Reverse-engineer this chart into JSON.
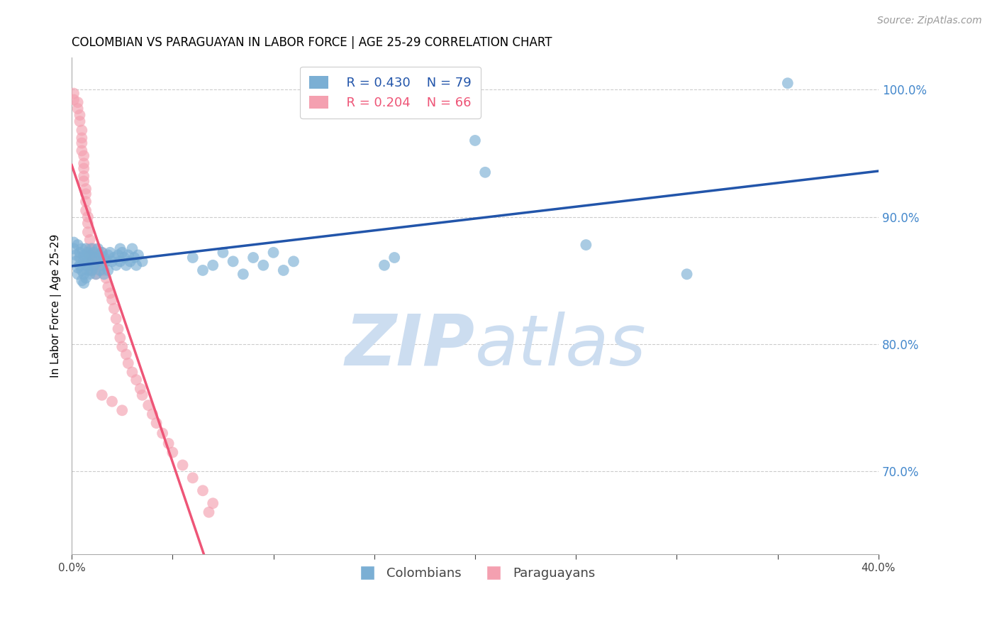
{
  "title": "COLOMBIAN VS PARAGUAYAN IN LABOR FORCE | AGE 25-29 CORRELATION CHART",
  "source": "Source: ZipAtlas.com",
  "ylabel": "In Labor Force | Age 25-29",
  "xlim": [
    0.0,
    0.4
  ],
  "ylim": [
    0.635,
    1.025
  ],
  "xticks": [
    0.0,
    0.05,
    0.1,
    0.15,
    0.2,
    0.25,
    0.3,
    0.35,
    0.4
  ],
  "xtick_labels": [
    "0.0%",
    "",
    "",
    "",
    "",
    "",
    "",
    "",
    "40.0%"
  ],
  "yticks_right": [
    0.7,
    0.8,
    0.9,
    1.0
  ],
  "blue_r": 0.43,
  "blue_n": 79,
  "pink_r": 0.204,
  "pink_n": 66,
  "blue_color": "#7BAFD4",
  "pink_color": "#F4A0B0",
  "blue_line_color": "#2255AA",
  "pink_line_color": "#EE5577",
  "pink_dash_color": "#EEB0C0",
  "watermark_zip": "ZIP",
  "watermark_atlas": "atlas",
  "watermark_color": "#CCDDF0",
  "legend_label_blue": "Colombians",
  "legend_label_pink": "Paraguayans",
  "blue_scatter": [
    [
      0.001,
      0.88
    ],
    [
      0.001,
      0.875
    ],
    [
      0.002,
      0.87
    ],
    [
      0.002,
      0.865
    ],
    [
      0.003,
      0.878
    ],
    [
      0.003,
      0.86
    ],
    [
      0.003,
      0.855
    ],
    [
      0.004,
      0.872
    ],
    [
      0.004,
      0.868
    ],
    [
      0.004,
      0.862
    ],
    [
      0.005,
      0.875
    ],
    [
      0.005,
      0.858
    ],
    [
      0.005,
      0.85
    ],
    [
      0.006,
      0.87
    ],
    [
      0.006,
      0.865
    ],
    [
      0.006,
      0.855
    ],
    [
      0.006,
      0.848
    ],
    [
      0.007,
      0.875
    ],
    [
      0.007,
      0.868
    ],
    [
      0.007,
      0.862
    ],
    [
      0.007,
      0.852
    ],
    [
      0.008,
      0.872
    ],
    [
      0.008,
      0.865
    ],
    [
      0.008,
      0.858
    ],
    [
      0.009,
      0.87
    ],
    [
      0.009,
      0.862
    ],
    [
      0.009,
      0.855
    ],
    [
      0.01,
      0.875
    ],
    [
      0.01,
      0.868
    ],
    [
      0.01,
      0.858
    ],
    [
      0.011,
      0.872
    ],
    [
      0.011,
      0.862
    ],
    [
      0.012,
      0.868
    ],
    [
      0.012,
      0.855
    ],
    [
      0.013,
      0.875
    ],
    [
      0.013,
      0.865
    ],
    [
      0.014,
      0.87
    ],
    [
      0.014,
      0.858
    ],
    [
      0.015,
      0.872
    ],
    [
      0.015,
      0.862
    ],
    [
      0.016,
      0.868
    ],
    [
      0.016,
      0.855
    ],
    [
      0.017,
      0.865
    ],
    [
      0.018,
      0.87
    ],
    [
      0.018,
      0.858
    ],
    [
      0.019,
      0.872
    ],
    [
      0.02,
      0.865
    ],
    [
      0.021,
      0.868
    ],
    [
      0.022,
      0.862
    ],
    [
      0.023,
      0.87
    ],
    [
      0.024,
      0.875
    ],
    [
      0.024,
      0.865
    ],
    [
      0.025,
      0.872
    ],
    [
      0.026,
      0.868
    ],
    [
      0.027,
      0.862
    ],
    [
      0.028,
      0.87
    ],
    [
      0.029,
      0.865
    ],
    [
      0.03,
      0.875
    ],
    [
      0.031,
      0.868
    ],
    [
      0.032,
      0.862
    ],
    [
      0.033,
      0.87
    ],
    [
      0.035,
      0.865
    ],
    [
      0.06,
      0.868
    ],
    [
      0.065,
      0.858
    ],
    [
      0.07,
      0.862
    ],
    [
      0.075,
      0.872
    ],
    [
      0.08,
      0.865
    ],
    [
      0.085,
      0.855
    ],
    [
      0.09,
      0.868
    ],
    [
      0.095,
      0.862
    ],
    [
      0.1,
      0.872
    ],
    [
      0.105,
      0.858
    ],
    [
      0.11,
      0.865
    ],
    [
      0.155,
      0.862
    ],
    [
      0.16,
      0.868
    ],
    [
      0.2,
      0.96
    ],
    [
      0.205,
      0.935
    ],
    [
      0.255,
      0.878
    ],
    [
      0.305,
      0.855
    ],
    [
      0.355,
      1.005
    ]
  ],
  "pink_scatter": [
    [
      0.001,
      0.997
    ],
    [
      0.001,
      0.992
    ],
    [
      0.003,
      0.99
    ],
    [
      0.003,
      0.985
    ],
    [
      0.004,
      0.98
    ],
    [
      0.004,
      0.975
    ],
    [
      0.005,
      0.968
    ],
    [
      0.005,
      0.962
    ],
    [
      0.005,
      0.958
    ],
    [
      0.005,
      0.952
    ],
    [
      0.006,
      0.948
    ],
    [
      0.006,
      0.942
    ],
    [
      0.006,
      0.938
    ],
    [
      0.006,
      0.932
    ],
    [
      0.006,
      0.928
    ],
    [
      0.007,
      0.922
    ],
    [
      0.007,
      0.918
    ],
    [
      0.007,
      0.912
    ],
    [
      0.007,
      0.905
    ],
    [
      0.008,
      0.9
    ],
    [
      0.008,
      0.895
    ],
    [
      0.008,
      0.888
    ],
    [
      0.009,
      0.882
    ],
    [
      0.009,
      0.875
    ],
    [
      0.009,
      0.87
    ],
    [
      0.01,
      0.865
    ],
    [
      0.01,
      0.858
    ],
    [
      0.011,
      0.875
    ],
    [
      0.011,
      0.868
    ],
    [
      0.012,
      0.862
    ],
    [
      0.012,
      0.855
    ],
    [
      0.013,
      0.87
    ],
    [
      0.013,
      0.862
    ],
    [
      0.014,
      0.858
    ],
    [
      0.015,
      0.872
    ],
    [
      0.015,
      0.865
    ],
    [
      0.016,
      0.858
    ],
    [
      0.017,
      0.852
    ],
    [
      0.018,
      0.845
    ],
    [
      0.019,
      0.84
    ],
    [
      0.02,
      0.835
    ],
    [
      0.021,
      0.828
    ],
    [
      0.022,
      0.82
    ],
    [
      0.023,
      0.812
    ],
    [
      0.024,
      0.805
    ],
    [
      0.025,
      0.798
    ],
    [
      0.027,
      0.792
    ],
    [
      0.028,
      0.785
    ],
    [
      0.03,
      0.778
    ],
    [
      0.032,
      0.772
    ],
    [
      0.034,
      0.765
    ],
    [
      0.035,
      0.76
    ],
    [
      0.038,
      0.752
    ],
    [
      0.04,
      0.745
    ],
    [
      0.042,
      0.738
    ],
    [
      0.045,
      0.73
    ],
    [
      0.048,
      0.722
    ],
    [
      0.05,
      0.715
    ],
    [
      0.055,
      0.705
    ],
    [
      0.06,
      0.695
    ],
    [
      0.065,
      0.685
    ],
    [
      0.07,
      0.675
    ],
    [
      0.015,
      0.76
    ],
    [
      0.02,
      0.755
    ],
    [
      0.025,
      0.748
    ],
    [
      0.068,
      0.668
    ]
  ],
  "title_fontsize": 12,
  "axis_label_fontsize": 11,
  "tick_fontsize": 11,
  "legend_fontsize": 13,
  "source_fontsize": 10
}
